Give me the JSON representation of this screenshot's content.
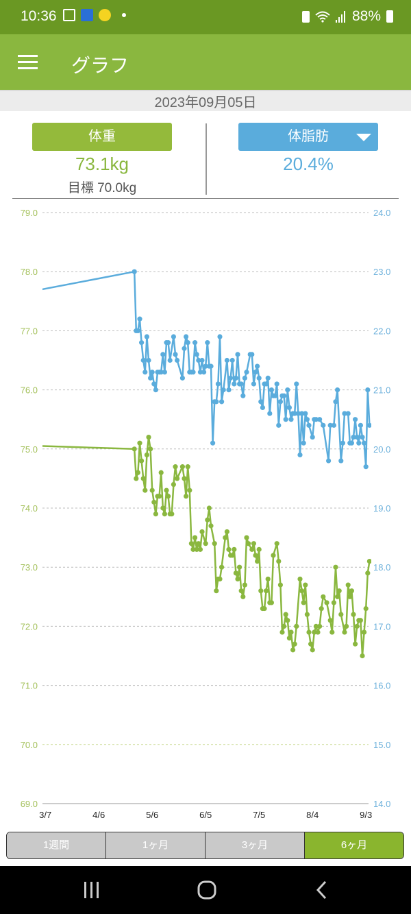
{
  "status_bar": {
    "time": "10:36",
    "battery": "88%",
    "icons": [
      "notes-icon",
      "app-icon",
      "character-icon",
      "dot-icon",
      "battery-saver-icon",
      "wifi-icon",
      "signal-icon",
      "battery-icon"
    ]
  },
  "app_bar": {
    "title": "グラフ",
    "menu_icon": "hamburger-icon"
  },
  "date": "2023年09月05日",
  "summary": {
    "weight": {
      "label": "体重",
      "value": "73.1kg",
      "goal": "目標 70.0kg"
    },
    "fat": {
      "label": "体脂肪",
      "value": "20.4%",
      "dropdown_icon": "triangle-down-icon"
    }
  },
  "colors": {
    "weight": "#8ab73f",
    "fat": "#5aacdc",
    "status_bar": "#6a9823",
    "app_bar": "#8ab73f",
    "goal_line": "#c9d98f"
  },
  "chart_data": {
    "type": "line",
    "xlim": [
      "2023-03-05",
      "2023-09-05"
    ],
    "x_ticks": [
      "3/7",
      "4/6",
      "5/6",
      "6/5",
      "7/5",
      "8/4",
      "9/3"
    ],
    "x_tick_dates": [
      "2023-03-07",
      "2023-04-06",
      "2023-05-06",
      "2023-06-05",
      "2023-07-05",
      "2023-08-04",
      "2023-09-03"
    ],
    "y_left": {
      "range": [
        69.0,
        79.0
      ],
      "ticks": [
        "79.0",
        "78.0",
        "77.0",
        "76.0",
        "75.0",
        "74.0",
        "73.0",
        "72.0",
        "71.0",
        "70.0",
        "69.0"
      ]
    },
    "y_right": {
      "range": [
        14.0,
        24.0
      ],
      "ticks": [
        "24.0",
        "23.0",
        "22.0",
        "21.0",
        "20.0",
        "19.0",
        "18.0",
        "17.0",
        "16.0",
        "15.0",
        "14.0"
      ]
    },
    "goal_line": 70.0,
    "grid": true,
    "series": [
      {
        "axis": "left",
        "color": "#8ab73f",
        "points": [
          [
            "2023-01-13",
            75.1
          ],
          [
            "2023-04-26",
            75.0
          ],
          [
            "2023-04-27",
            74.5
          ],
          [
            "2023-04-28",
            74.6
          ],
          [
            "2023-04-29",
            75.1
          ],
          [
            "2023-04-30",
            74.8
          ],
          [
            "2023-05-01",
            74.5
          ],
          [
            "2023-05-02",
            74.3
          ],
          [
            "2023-05-03",
            74.9
          ],
          [
            "2023-05-04",
            75.2
          ],
          [
            "2023-05-05",
            75.0
          ],
          [
            "2023-05-06",
            74.3
          ],
          [
            "2023-05-07",
            74.1
          ],
          [
            "2023-05-08",
            73.9
          ],
          [
            "2023-05-09",
            74.2
          ],
          [
            "2023-05-10",
            74.2
          ],
          [
            "2023-05-11",
            74.6
          ],
          [
            "2023-05-12",
            74.0
          ],
          [
            "2023-05-13",
            73.9
          ],
          [
            "2023-05-14",
            74.3
          ],
          [
            "2023-05-15",
            74.2
          ],
          [
            "2023-05-16",
            73.9
          ],
          [
            "2023-05-17",
            73.9
          ],
          [
            "2023-05-18",
            74.4
          ],
          [
            "2023-05-19",
            74.7
          ],
          [
            "2023-05-20",
            74.5
          ],
          [
            "2023-05-23",
            74.7
          ],
          [
            "2023-05-24",
            74.5
          ],
          [
            "2023-05-25",
            74.2
          ],
          [
            "2023-05-26",
            74.7
          ],
          [
            "2023-05-27",
            74.3
          ],
          [
            "2023-05-28",
            73.4
          ],
          [
            "2023-05-29",
            73.3
          ],
          [
            "2023-05-30",
            73.5
          ],
          [
            "2023-05-31",
            73.3
          ],
          [
            "2023-06-01",
            73.4
          ],
          [
            "2023-06-02",
            73.3
          ],
          [
            "2023-06-03",
            73.6
          ],
          [
            "2023-06-05",
            73.4
          ],
          [
            "2023-06-06",
            73.8
          ],
          [
            "2023-06-07",
            74.0
          ],
          [
            "2023-06-08",
            73.7
          ],
          [
            "2023-06-10",
            73.4
          ],
          [
            "2023-06-11",
            72.6
          ],
          [
            "2023-06-12",
            72.8
          ],
          [
            "2023-06-13",
            72.8
          ],
          [
            "2023-06-14",
            73.0
          ],
          [
            "2023-06-16",
            73.5
          ],
          [
            "2023-06-17",
            73.6
          ],
          [
            "2023-06-18",
            73.3
          ],
          [
            "2023-06-19",
            73.2
          ],
          [
            "2023-06-20",
            73.2
          ],
          [
            "2023-06-21",
            73.3
          ],
          [
            "2023-06-22",
            72.9
          ],
          [
            "2023-06-23",
            72.8
          ],
          [
            "2023-06-24",
            73.0
          ],
          [
            "2023-06-25",
            72.6
          ],
          [
            "2023-06-26",
            72.5
          ],
          [
            "2023-06-27",
            72.7
          ],
          [
            "2023-06-28",
            73.5
          ],
          [
            "2023-06-29",
            73.4
          ],
          [
            "2023-07-01",
            73.3
          ],
          [
            "2023-07-02",
            73.4
          ],
          [
            "2023-07-03",
            73.2
          ],
          [
            "2023-07-04",
            73.1
          ],
          [
            "2023-07-05",
            73.3
          ],
          [
            "2023-07-06",
            72.6
          ],
          [
            "2023-07-07",
            72.3
          ],
          [
            "2023-07-08",
            72.3
          ],
          [
            "2023-07-09",
            72.6
          ],
          [
            "2023-07-10",
            72.8
          ],
          [
            "2023-07-11",
            72.4
          ],
          [
            "2023-07-12",
            72.4
          ],
          [
            "2023-07-13",
            73.2
          ],
          [
            "2023-07-15",
            73.4
          ],
          [
            "2023-07-16",
            73.1
          ],
          [
            "2023-07-17",
            72.7
          ],
          [
            "2023-07-18",
            71.9
          ],
          [
            "2023-07-19",
            72.0
          ],
          [
            "2023-07-20",
            72.2
          ],
          [
            "2023-07-21",
            72.1
          ],
          [
            "2023-07-22",
            71.8
          ],
          [
            "2023-07-23",
            71.9
          ],
          [
            "2023-07-24",
            71.6
          ],
          [
            "2023-07-25",
            71.7
          ],
          [
            "2023-07-26",
            72.0
          ],
          [
            "2023-07-28",
            72.8
          ],
          [
            "2023-07-29",
            72.6
          ],
          [
            "2023-07-30",
            72.4
          ],
          [
            "2023-07-31",
            72.7
          ],
          [
            "2023-08-01",
            72.2
          ],
          [
            "2023-08-02",
            71.9
          ],
          [
            "2023-08-03",
            71.7
          ],
          [
            "2023-08-04",
            71.6
          ],
          [
            "2023-08-05",
            71.9
          ],
          [
            "2023-08-06",
            72.0
          ],
          [
            "2023-08-07",
            71.9
          ],
          [
            "2023-08-08",
            72.0
          ],
          [
            "2023-08-09",
            72.3
          ],
          [
            "2023-08-10",
            72.5
          ],
          [
            "2023-08-12",
            72.4
          ],
          [
            "2023-08-14",
            72.1
          ],
          [
            "2023-08-15",
            71.9
          ],
          [
            "2023-08-16",
            72.4
          ],
          [
            "2023-08-17",
            73.0
          ],
          [
            "2023-08-18",
            72.5
          ],
          [
            "2023-08-19",
            72.6
          ],
          [
            "2023-08-20",
            72.2
          ],
          [
            "2023-08-22",
            71.9
          ],
          [
            "2023-08-23",
            72.0
          ],
          [
            "2023-08-24",
            72.7
          ],
          [
            "2023-08-25",
            72.5
          ],
          [
            "2023-08-26",
            72.6
          ],
          [
            "2023-08-27",
            72.2
          ],
          [
            "2023-08-28",
            71.7
          ],
          [
            "2023-08-29",
            72.0
          ],
          [
            "2023-08-30",
            72.1
          ],
          [
            "2023-08-31",
            72.1
          ],
          [
            "2023-09-01",
            71.5
          ],
          [
            "2023-09-02",
            71.9
          ],
          [
            "2023-09-03",
            72.3
          ],
          [
            "2023-09-04",
            72.9
          ],
          [
            "2023-09-05",
            73.1
          ]
        ]
      },
      {
        "axis": "right",
        "color": "#5aacdc",
        "points": [
          [
            "2023-03-05",
            22.7
          ],
          [
            "2023-04-26",
            23.0
          ],
          [
            "2023-04-27",
            22.0
          ],
          [
            "2023-04-28",
            22.0
          ],
          [
            "2023-04-29",
            22.2
          ],
          [
            "2023-04-30",
            21.8
          ],
          [
            "2023-05-01",
            21.5
          ],
          [
            "2023-05-02",
            21.3
          ],
          [
            "2023-05-03",
            21.9
          ],
          [
            "2023-05-04",
            21.5
          ],
          [
            "2023-05-05",
            21.2
          ],
          [
            "2023-05-06",
            21.3
          ],
          [
            "2023-05-07",
            21.1
          ],
          [
            "2023-05-08",
            21.0
          ],
          [
            "2023-05-09",
            21.3
          ],
          [
            "2023-05-10",
            21.3
          ],
          [
            "2023-05-11",
            21.3
          ],
          [
            "2023-05-12",
            21.6
          ],
          [
            "2023-05-13",
            21.3
          ],
          [
            "2023-05-14",
            21.8
          ],
          [
            "2023-05-15",
            21.8
          ],
          [
            "2023-05-16",
            21.5
          ],
          [
            "2023-05-18",
            21.9
          ],
          [
            "2023-05-19",
            21.6
          ],
          [
            "2023-05-20",
            21.5
          ],
          [
            "2023-05-23",
            21.2
          ],
          [
            "2023-05-24",
            21.7
          ],
          [
            "2023-05-25",
            21.9
          ],
          [
            "2023-05-26",
            21.8
          ],
          [
            "2023-05-27",
            21.3
          ],
          [
            "2023-05-28",
            21.3
          ],
          [
            "2023-05-29",
            21.3
          ],
          [
            "2023-05-30",
            21.8
          ],
          [
            "2023-05-31",
            21.6
          ],
          [
            "2023-06-01",
            21.5
          ],
          [
            "2023-06-02",
            21.3
          ],
          [
            "2023-06-03",
            21.5
          ],
          [
            "2023-06-04",
            21.3
          ],
          [
            "2023-06-05",
            21.4
          ],
          [
            "2023-06-06",
            21.8
          ],
          [
            "2023-06-07",
            21.4
          ],
          [
            "2023-06-08",
            21.4
          ],
          [
            "2023-06-09",
            20.1
          ],
          [
            "2023-06-10",
            20.8
          ],
          [
            "2023-06-11",
            20.8
          ],
          [
            "2023-06-12",
            21.1
          ],
          [
            "2023-06-13",
            21.9
          ],
          [
            "2023-06-14",
            20.8
          ],
          [
            "2023-06-15",
            21.0
          ],
          [
            "2023-06-17",
            21.5
          ],
          [
            "2023-06-18",
            21.0
          ],
          [
            "2023-06-19",
            21.2
          ],
          [
            "2023-06-20",
            21.5
          ],
          [
            "2023-06-21",
            21.1
          ],
          [
            "2023-06-22",
            21.2
          ],
          [
            "2023-06-23",
            21.6
          ],
          [
            "2023-06-24",
            21.1
          ],
          [
            "2023-06-25",
            21.1
          ],
          [
            "2023-06-26",
            20.9
          ],
          [
            "2023-06-27",
            21.2
          ],
          [
            "2023-06-28",
            21.3
          ],
          [
            "2023-06-30",
            21.6
          ],
          [
            "2023-07-01",
            21.6
          ],
          [
            "2023-07-02",
            21.1
          ],
          [
            "2023-07-03",
            21.3
          ],
          [
            "2023-07-04",
            21.4
          ],
          [
            "2023-07-05",
            21.2
          ],
          [
            "2023-07-06",
            20.8
          ],
          [
            "2023-07-07",
            20.7
          ],
          [
            "2023-07-08",
            21.1
          ],
          [
            "2023-07-09",
            21.1
          ],
          [
            "2023-07-10",
            21.2
          ],
          [
            "2023-07-11",
            20.6
          ],
          [
            "2023-07-12",
            21.0
          ],
          [
            "2023-07-13",
            20.9
          ],
          [
            "2023-07-14",
            20.9
          ],
          [
            "2023-07-15",
            21.1
          ],
          [
            "2023-07-16",
            20.4
          ],
          [
            "2023-07-17",
            20.8
          ],
          [
            "2023-07-18",
            20.9
          ],
          [
            "2023-07-19",
            20.9
          ],
          [
            "2023-07-20",
            20.5
          ],
          [
            "2023-07-21",
            21.0
          ],
          [
            "2023-07-22",
            20.7
          ],
          [
            "2023-07-23",
            20.5
          ],
          [
            "2023-07-24",
            20.6
          ],
          [
            "2023-07-25",
            20.6
          ],
          [
            "2023-07-26",
            21.1
          ],
          [
            "2023-07-27",
            20.6
          ],
          [
            "2023-07-28",
            19.9
          ],
          [
            "2023-07-29",
            20.6
          ],
          [
            "2023-07-30",
            20.1
          ],
          [
            "2023-07-31",
            20.6
          ],
          [
            "2023-08-01",
            20.5
          ],
          [
            "2023-08-02",
            20.4
          ],
          [
            "2023-08-04",
            20.2
          ],
          [
            "2023-08-05",
            20.5
          ],
          [
            "2023-08-06",
            20.5
          ],
          [
            "2023-08-08",
            20.5
          ],
          [
            "2023-08-10",
            20.4
          ],
          [
            "2023-08-13",
            19.8
          ],
          [
            "2023-08-14",
            20.4
          ],
          [
            "2023-08-16",
            20.4
          ],
          [
            "2023-08-17",
            20.8
          ],
          [
            "2023-08-18",
            21.0
          ],
          [
            "2023-08-20",
            19.8
          ],
          [
            "2023-08-21",
            20.1
          ],
          [
            "2023-08-22",
            20.6
          ],
          [
            "2023-08-24",
            20.6
          ],
          [
            "2023-08-25",
            20.1
          ],
          [
            "2023-08-26",
            20.1
          ],
          [
            "2023-08-27",
            20.2
          ],
          [
            "2023-08-28",
            20.5
          ],
          [
            "2023-08-29",
            20.2
          ],
          [
            "2023-08-30",
            20.1
          ],
          [
            "2023-08-31",
            20.4
          ],
          [
            "2023-09-01",
            20.2
          ],
          [
            "2023-09-02",
            20.1
          ],
          [
            "2023-09-03",
            19.7
          ],
          [
            "2023-09-04",
            21.0
          ],
          [
            "2023-09-05",
            20.4
          ]
        ]
      }
    ]
  },
  "period_tabs": [
    {
      "label": "1週間",
      "active": false
    },
    {
      "label": "1ヶ月",
      "active": false
    },
    {
      "label": "3ヶ月",
      "active": false
    },
    {
      "label": "6ヶ月",
      "active": true
    }
  ],
  "nav_bar": {
    "icons": [
      "recents-icon",
      "home-icon",
      "back-icon"
    ]
  }
}
